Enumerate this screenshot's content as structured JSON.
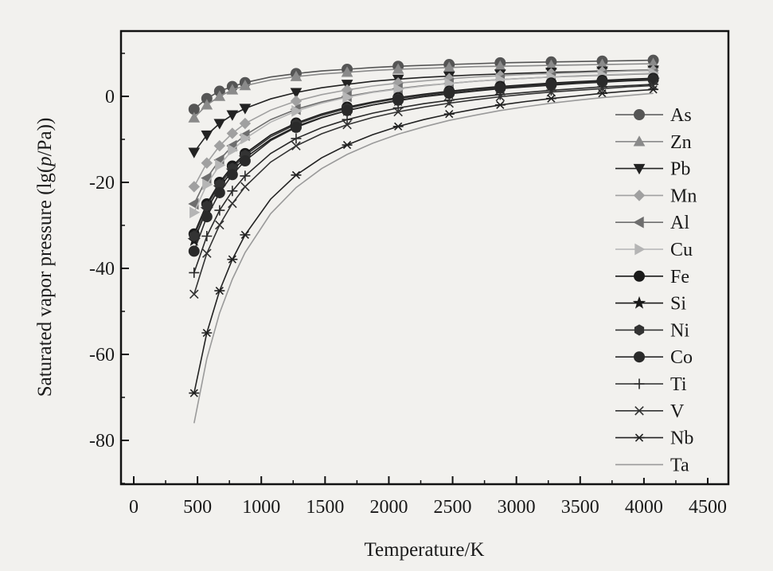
{
  "chart_data": {
    "type": "line",
    "title": "",
    "xlabel": "Temperature/K",
    "ylabel": "Saturated vapor pressure (lg(p/Pa))",
    "ylabel_parts": [
      "Saturated vapor pressure (lg(",
      "p",
      "/Pa))"
    ],
    "xlim": [
      0,
      4500
    ],
    "ylim": [
      -90,
      15
    ],
    "xticks": [
      0,
      500,
      1000,
      1500,
      2000,
      2500,
      3000,
      3500,
      4000,
      4500
    ],
    "yticks": [
      -80,
      -60,
      -40,
      -20,
      0
    ],
    "grid": false,
    "legend_position": "right",
    "x": [
      473,
      573,
      673,
      773,
      873,
      1073,
      1273,
      1473,
      1673,
      1873,
      2073,
      2273,
      2473,
      2673,
      2873,
      3073,
      3273,
      3473,
      3673,
      3873,
      4073
    ],
    "series": [
      {
        "name": "As",
        "marker": "circle",
        "color": "#555555",
        "values": [
          -3.0,
          -0.5,
          1.2,
          2.3,
          3.2,
          4.5,
          5.3,
          5.9,
          6.3,
          6.7,
          7.0,
          7.2,
          7.4,
          7.6,
          7.8,
          7.9,
          8.0,
          8.1,
          8.2,
          8.3,
          8.4
        ]
      },
      {
        "name": "Zn",
        "marker": "triangle-up",
        "color": "#8a8a8a",
        "values": [
          -5.0,
          -2.0,
          0.0,
          1.5,
          2.5,
          3.8,
          4.6,
          5.2,
          5.6,
          6.0,
          6.3,
          6.5,
          6.7,
          6.9,
          7.0,
          7.1,
          7.2,
          7.3,
          7.4,
          7.5,
          7.6
        ]
      },
      {
        "name": "Pb",
        "marker": "triangle-down",
        "color": "#222222",
        "values": [
          -13.0,
          -9.0,
          -6.3,
          -4.3,
          -2.8,
          -0.6,
          0.9,
          2.0,
          2.8,
          3.5,
          4.0,
          4.4,
          4.7,
          5.0,
          5.2,
          5.4,
          5.6,
          5.7,
          5.9,
          6.0,
          6.1
        ]
      },
      {
        "name": "Mn",
        "marker": "diamond",
        "color": "#a0a0a0",
        "values": [
          -21.0,
          -15.5,
          -11.5,
          -8.6,
          -6.3,
          -3.2,
          -1.1,
          0.4,
          1.5,
          2.4,
          3.1,
          3.6,
          4.1,
          4.5,
          4.8,
          5.1,
          5.3,
          5.5,
          5.7,
          5.9,
          6.0
        ]
      },
      {
        "name": "Al",
        "marker": "triangle-left",
        "color": "#6e6e6e",
        "values": [
          -25.0,
          -19.0,
          -14.8,
          -11.5,
          -9.0,
          -5.4,
          -3.0,
          -1.3,
          0.0,
          1.0,
          1.8,
          2.5,
          3.0,
          3.5,
          3.9,
          4.2,
          4.5,
          4.7,
          4.9,
          5.1,
          5.3
        ]
      },
      {
        "name": "Cu",
        "marker": "triangle-right",
        "color": "#b5b5b5",
        "values": [
          -27.0,
          -20.5,
          -16.0,
          -12.5,
          -9.8,
          -6.0,
          -3.4,
          -1.6,
          -0.2,
          0.9,
          1.7,
          2.4,
          3.0,
          3.5,
          3.9,
          4.2,
          4.5,
          4.8,
          5.0,
          5.2,
          5.4
        ]
      },
      {
        "name": "Fe",
        "marker": "circle",
        "color": "#1a1a1a",
        "values": [
          -32.0,
          -25.0,
          -20.0,
          -16.2,
          -13.3,
          -9.0,
          -6.2,
          -4.1,
          -2.5,
          -1.3,
          -0.3,
          0.5,
          1.2,
          1.8,
          2.3,
          2.7,
          3.1,
          3.4,
          3.7,
          4.0,
          4.2
        ]
      },
      {
        "name": "Si",
        "marker": "star",
        "color": "#1a1a1a",
        "values": [
          -33.5,
          -26.3,
          -21.2,
          -17.3,
          -14.3,
          -10.0,
          -7.0,
          -4.9,
          -3.3,
          -2.0,
          -1.0,
          -0.1,
          0.6,
          1.2,
          1.8,
          2.2,
          2.6,
          3.0,
          3.3,
          3.6,
          3.8
        ]
      },
      {
        "name": "Ni",
        "marker": "hexagon",
        "color": "#333333",
        "values": [
          -32.5,
          -25.5,
          -20.5,
          -16.7,
          -13.7,
          -9.4,
          -6.5,
          -4.4,
          -2.8,
          -1.5,
          -0.5,
          0.3,
          1.0,
          1.6,
          2.1,
          2.5,
          2.9,
          3.2,
          3.5,
          3.8,
          4.0
        ]
      },
      {
        "name": "Co",
        "marker": "circle",
        "color": "#2a2a2a",
        "values": [
          -36.0,
          -28.0,
          -22.4,
          -18.2,
          -15.0,
          -10.3,
          -7.2,
          -5.0,
          -3.3,
          -2.0,
          -0.9,
          0.0,
          0.7,
          1.3,
          1.9,
          2.3,
          2.7,
          3.1,
          3.4,
          3.7,
          3.9
        ]
      },
      {
        "name": "Ti",
        "marker": "plus",
        "color": "#2a2a2a",
        "values": [
          -41.0,
          -32.5,
          -26.5,
          -22.0,
          -18.5,
          -13.3,
          -9.8,
          -7.3,
          -5.4,
          -3.9,
          -2.7,
          -1.7,
          -0.9,
          -0.2,
          0.4,
          0.9,
          1.4,
          1.8,
          2.2,
          2.5,
          2.8
        ]
      },
      {
        "name": "V",
        "marker": "x",
        "color": "#333333",
        "values": [
          -46.0,
          -36.5,
          -29.9,
          -24.9,
          -21.0,
          -15.3,
          -11.5,
          -8.7,
          -6.6,
          -4.9,
          -3.6,
          -2.5,
          -1.6,
          -0.8,
          -0.1,
          0.5,
          1.0,
          1.4,
          1.8,
          2.2,
          2.5
        ]
      },
      {
        "name": "Nb",
        "marker": "asterisk",
        "color": "#222222",
        "values": [
          -69.0,
          -55.0,
          -45.2,
          -37.9,
          -32.2,
          -23.9,
          -18.3,
          -14.3,
          -11.3,
          -8.9,
          -7.0,
          -5.4,
          -4.1,
          -3.0,
          -2.0,
          -1.2,
          -0.5,
          0.1,
          0.7,
          1.2,
          1.6
        ]
      },
      {
        "name": "Ta",
        "marker": "none",
        "color": "#9a9a9a",
        "values": [
          -76.0,
          -61.0,
          -50.4,
          -42.5,
          -36.3,
          -27.3,
          -21.2,
          -16.8,
          -13.5,
          -10.9,
          -8.8,
          -7.1,
          -5.6,
          -4.4,
          -3.3,
          -2.4,
          -1.6,
          -0.9,
          -0.3,
          0.2,
          0.7
        ]
      }
    ]
  }
}
